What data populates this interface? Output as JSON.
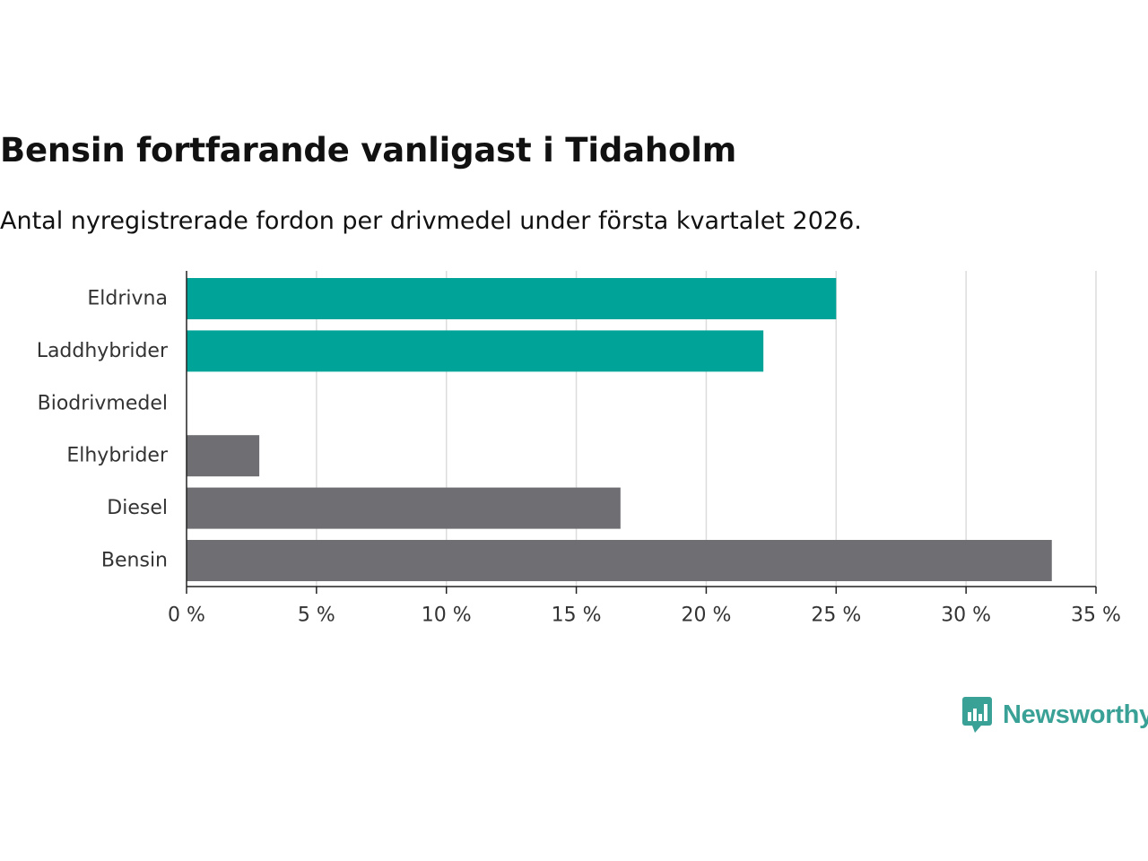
{
  "title": "Bensin fortfarande vanligast i Tidaholm",
  "subtitle": "Antal nyregistrerade fordon per drivmedel under första kvartalet 2026.",
  "brand": {
    "name": "Newsworthy",
    "icon": "bar-chart-speech-bubble-icon",
    "color": "#3aa197"
  },
  "chart_data": {
    "type": "bar",
    "orientation": "horizontal",
    "title": "Bensin fortfarande vanligast i Tidaholm",
    "subtitle": "Antal nyregistrerade fordon per drivmedel under första kvartalet 2026.",
    "xlabel": "",
    "ylabel": "",
    "xlim": [
      0,
      35
    ],
    "ticks": [
      0,
      5,
      10,
      15,
      20,
      25,
      30,
      35
    ],
    "tick_labels": [
      "0 %",
      "5 %",
      "10 %",
      "15 %",
      "20 %",
      "25 %",
      "30 %",
      "35 %"
    ],
    "grid": true,
    "categories": [
      "Eldrivna",
      "Laddhybrider",
      "Biodrivmedel",
      "Elhybrider",
      "Diesel",
      "Bensin"
    ],
    "values": [
      25.0,
      22.2,
      0,
      2.8,
      16.7,
      33.3
    ],
    "colors": [
      "#00a398",
      "#00a398",
      "#00a398",
      "#6e6e73",
      "#6e6e73",
      "#6e6e73"
    ],
    "unit": "%"
  }
}
